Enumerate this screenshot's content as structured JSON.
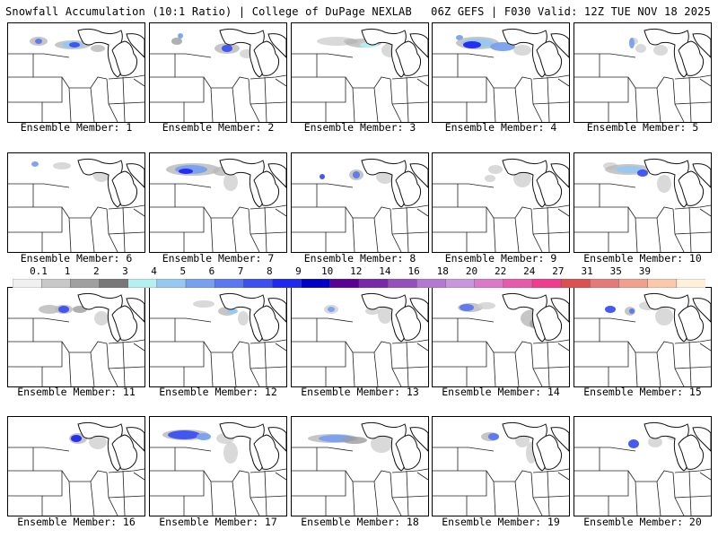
{
  "header": {
    "title_left": "Snowfall Accumulation (10:1 Ratio) | College of DuPage NEXLAB",
    "title_right": "06Z GEFS | F030 Valid: 12Z TUE NOV 18 2025"
  },
  "colorbar": {
    "levels": [
      "0.1",
      "1",
      "2",
      "3",
      "4",
      "5",
      "6",
      "7",
      "8",
      "9",
      "10",
      "12",
      "14",
      "16",
      "18",
      "20",
      "22",
      "24",
      "27",
      "31",
      "35",
      "39"
    ],
    "colors": [
      "#f0f0f0",
      "#c8c8c8",
      "#a0a0a0",
      "#787878",
      "#b4f0f0",
      "#96c8f0",
      "#78a0f0",
      "#5a78f0",
      "#3c50f0",
      "#1e28f0",
      "#0000c8",
      "#5a0096",
      "#7828aa",
      "#9650be",
      "#b478d2",
      "#c896dc",
      "#dc78c8",
      "#e65aaa",
      "#f03c8c",
      "#dc5050",
      "#e67878",
      "#f0a08c",
      "#fac8aa",
      "#fff0dc"
    ]
  },
  "panels": [
    {
      "label": "Ensemble Member: 1"
    },
    {
      "label": "Ensemble Member: 2"
    },
    {
      "label": "Ensemble Member: 3"
    },
    {
      "label": "Ensemble Member: 4"
    },
    {
      "label": "Ensemble Member: 5"
    },
    {
      "label": "Ensemble Member: 6"
    },
    {
      "label": "Ensemble Member: 7"
    },
    {
      "label": "Ensemble Member: 8"
    },
    {
      "label": "Ensemble Member: 9"
    },
    {
      "label": "Ensemble Member: 10"
    },
    {
      "label": "Ensemble Member: 11"
    },
    {
      "label": "Ensemble Member: 12"
    },
    {
      "label": "Ensemble Member: 13"
    },
    {
      "label": "Ensemble Member: 14"
    },
    {
      "label": "Ensemble Member: 15"
    },
    {
      "label": "Ensemble Member: 16"
    },
    {
      "label": "Ensemble Member: 17"
    },
    {
      "label": "Ensemble Member: 18"
    },
    {
      "label": "Ensemble Member: 19"
    },
    {
      "label": "Ensemble Member: 20"
    }
  ]
}
